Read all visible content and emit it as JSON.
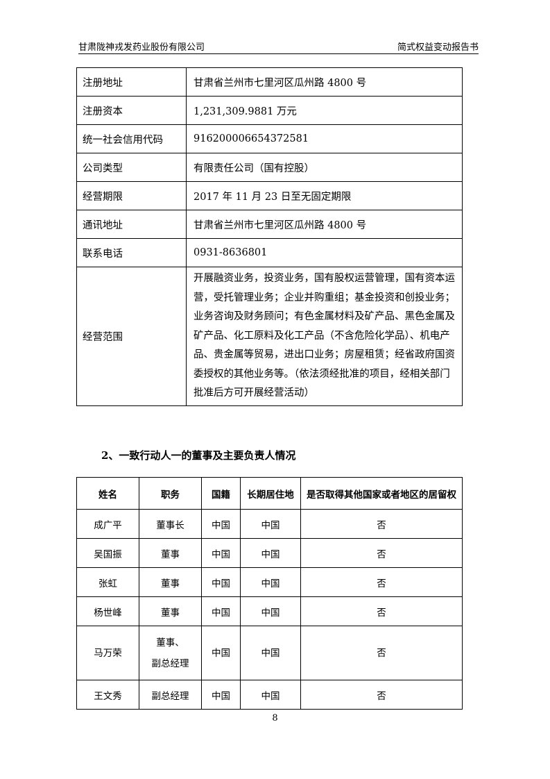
{
  "header": {
    "left": "甘肃陇神戎发药业股份有限公司",
    "right": "简式权益变动报告书"
  },
  "info_table": [
    {
      "key": "注册地址",
      "value": "甘肃省兰州市七里河区瓜州路 4800 号"
    },
    {
      "key": "注册资本",
      "value": "1,231,309.9881 万元"
    },
    {
      "key": "统一社会信用代码",
      "value": "916200006654372581"
    },
    {
      "key": "公司类型",
      "value": "有限责任公司（国有控股）"
    },
    {
      "key": "经营期限",
      "value": "2017 年 11 月 23 日至无固定期限"
    },
    {
      "key": "通讯地址",
      "value": "甘肃省兰州市七里河区瓜州路 4800 号"
    },
    {
      "key": "联系电话",
      "value": "0931-8636801"
    },
    {
      "key": "经营范围",
      "value": "开展融资业务，投资业务，国有股权运营管理，国有资本运营，受托管理业务；企业并购重组；基金投资和创投业务；业务咨询及财务顾问；有色金属材料及矿产品、黑色金属及矿产品、化工原料及化工产品（不含危险化学品）、机电产品、贵金属等贸易，进出口业务；房屋租赁；经省政府国资委授权的其他业务等。（依法须经批准的项目，经相关部门批准后方可开展经营活动）"
    }
  ],
  "section_heading": "2、一致行动人一的董事及主要负责人情况",
  "people_table": {
    "headers": [
      "姓名",
      "职务",
      "国籍",
      "长期居住地",
      "是否取得其他国家或者地区的居留权"
    ],
    "rows": [
      {
        "name": "成广平",
        "title": "董事长",
        "nationality": "中国",
        "residence": "中国",
        "foreign_residency": "否"
      },
      {
        "name": "吴国振",
        "title": "董事",
        "nationality": "中国",
        "residence": "中国",
        "foreign_residency": "否"
      },
      {
        "name": "张虹",
        "title": "董事",
        "nationality": "中国",
        "residence": "中国",
        "foreign_residency": "否"
      },
      {
        "name": "杨世峰",
        "title": "董事",
        "nationality": "中国",
        "residence": "中国",
        "foreign_residency": "否"
      },
      {
        "name": "马万荣",
        "title_line1": "董事、",
        "title_line2": "副总经理",
        "nationality": "中国",
        "residence": "中国",
        "foreign_residency": "否"
      },
      {
        "name": "王文秀",
        "title": "副总经理",
        "nationality": "中国",
        "residence": "中国",
        "foreign_residency": "否"
      }
    ]
  },
  "page_number": "8"
}
